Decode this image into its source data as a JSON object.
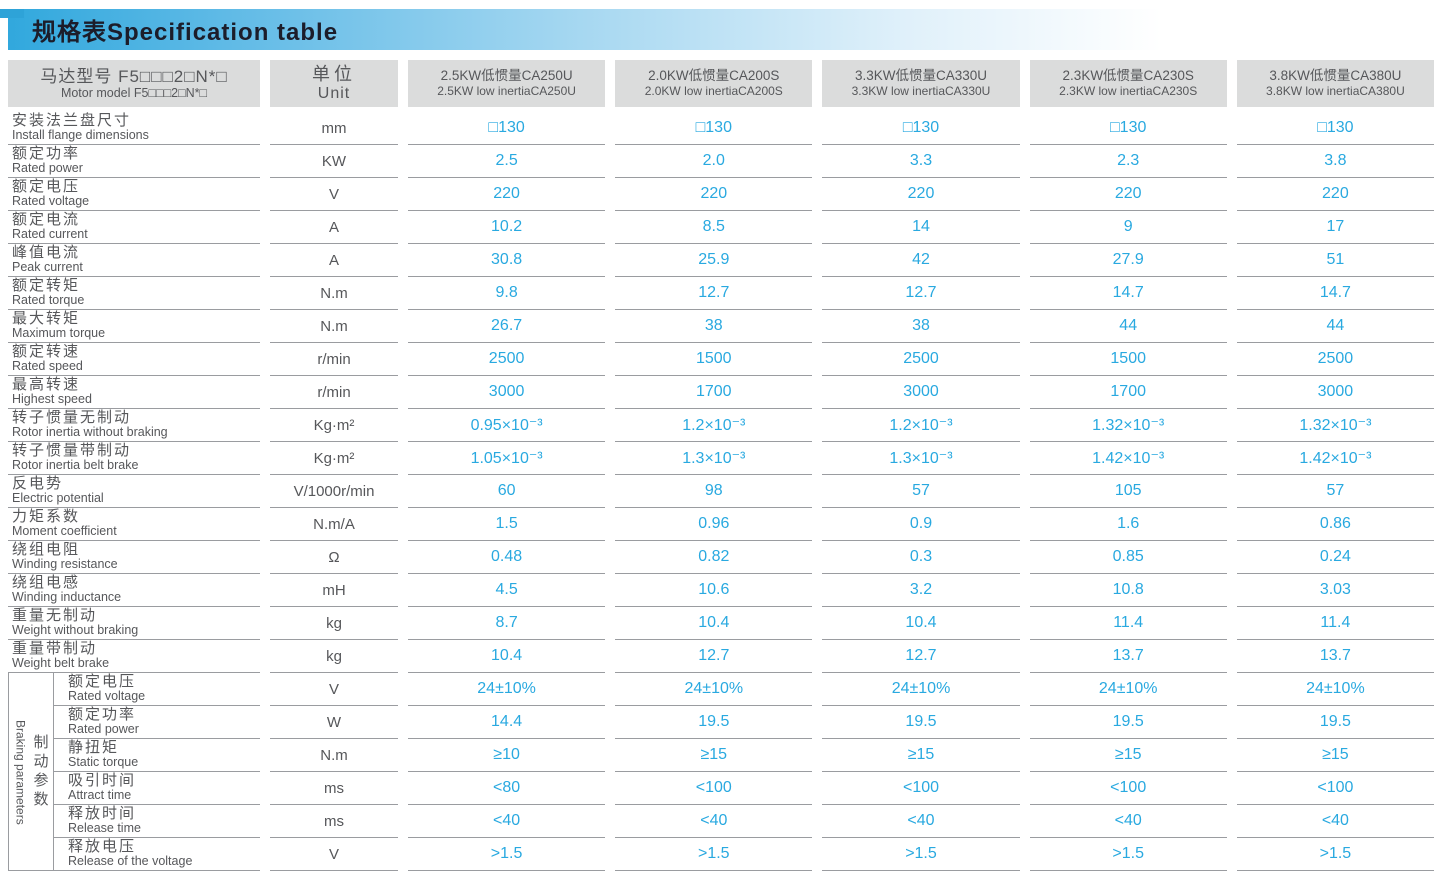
{
  "title": "规格表Specification table",
  "colors": {
    "accent_blue": "#29a9e0",
    "header_gray": "#dbdcdc",
    "label_gray": "#56575a",
    "border_gray": "#9a9ca0",
    "title_band_blue": "#31a8dd"
  },
  "table": {
    "model_header": {
      "zh": "马达型号 F5□□□2□N*□",
      "en": "Motor model F5□□□2□N*□"
    },
    "unit_header": {
      "zh": "单位",
      "en": "Unit"
    },
    "columns": [
      {
        "zh": "2.5KW低惯量CA250U",
        "en": "2.5KW low inertiaCA250U"
      },
      {
        "zh": "2.0KW低惯量CA200S",
        "en": "2.0KW low inertiaCA200S"
      },
      {
        "zh": "3.3KW低惯量CA330U",
        "en": "3.3KW low inertiaCA330U"
      },
      {
        "zh": "2.3KW低惯量CA230S",
        "en": "2.3KW low inertiaCA230S"
      },
      {
        "zh": "3.8KW低惯量CA380U",
        "en": "3.8KW low inertiaCA380U"
      }
    ],
    "rows": [
      {
        "zh": "安装法兰盘尺寸",
        "en": "Install flange dimensions",
        "unit": "mm",
        "values": [
          "□130",
          "□130",
          "□130",
          "□130",
          "□130"
        ]
      },
      {
        "zh": "额定功率",
        "en": "Rated power",
        "unit": "KW",
        "values": [
          "2.5",
          "2.0",
          "3.3",
          "2.3",
          "3.8"
        ]
      },
      {
        "zh": "额定电压",
        "en": "Rated voltage",
        "unit": "V",
        "values": [
          "220",
          "220",
          "220",
          "220",
          "220"
        ]
      },
      {
        "zh": "额定电流",
        "en": "Rated current",
        "unit": "A",
        "values": [
          "10.2",
          "8.5",
          "14",
          "9",
          "17"
        ]
      },
      {
        "zh": "峰值电流",
        "en": "Peak current",
        "unit": "A",
        "values": [
          "30.8",
          "25.9",
          "42",
          "27.9",
          "51"
        ]
      },
      {
        "zh": "额定转矩",
        "en": "Rated torque",
        "unit": "N.m",
        "values": [
          "9.8",
          "12.7",
          "12.7",
          "14.7",
          "14.7"
        ]
      },
      {
        "zh": "最大转矩",
        "en": "Maximum torque",
        "unit": "N.m",
        "values": [
          "26.7",
          "38",
          "38",
          "44",
          "44"
        ]
      },
      {
        "zh": "额定转速",
        "en": "Rated speed",
        "unit": "r/min",
        "values": [
          "2500",
          "1500",
          "2500",
          "1500",
          "2500"
        ]
      },
      {
        "zh": "最高转速",
        "en": "Highest speed",
        "unit": "r/min",
        "values": [
          "3000",
          "1700",
          "3000",
          "1700",
          "3000"
        ]
      },
      {
        "zh": "转子惯量无制动",
        "en": "Rotor inertia without braking",
        "unit": "Kg·m²",
        "values": [
          "0.95×10⁻³",
          "1.2×10⁻³",
          "1.2×10⁻³",
          "1.32×10⁻³",
          "1.32×10⁻³"
        ]
      },
      {
        "zh": "转子惯量带制动",
        "en": "Rotor inertia belt brake",
        "unit": "Kg·m²",
        "values": [
          "1.05×10⁻³",
          "1.3×10⁻³",
          "1.3×10⁻³",
          "1.42×10⁻³",
          "1.42×10⁻³"
        ]
      },
      {
        "zh": "反电势",
        "en": "Electric potential",
        "unit": "V/1000r/min",
        "values": [
          "60",
          "98",
          "57",
          "105",
          "57"
        ]
      },
      {
        "zh": "力矩系数",
        "en": "Moment coefficient",
        "unit": "N.m/A",
        "values": [
          "1.5",
          "0.96",
          "0.9",
          "1.6",
          "0.86"
        ]
      },
      {
        "zh": "绕组电阻",
        "en": "Winding resistance",
        "unit": "Ω",
        "values": [
          "0.48",
          "0.82",
          "0.3",
          "0.85",
          "0.24"
        ]
      },
      {
        "zh": "绕组电感",
        "en": "Winding inductance",
        "unit": "mH",
        "values": [
          "4.5",
          "10.6",
          "3.2",
          "10.8",
          "3.03"
        ]
      },
      {
        "zh": "重量无制动",
        "en": "Weight without braking",
        "unit": "kg",
        "values": [
          "8.7",
          "10.4",
          "10.4",
          "11.4",
          "11.4"
        ]
      },
      {
        "zh": "重量带制动",
        "en": "Weight belt brake",
        "unit": "kg",
        "values": [
          "10.4",
          "12.7",
          "12.7",
          "13.7",
          "13.7"
        ]
      }
    ],
    "braking": {
      "label_zh": "制动参数",
      "label_en": "Braking parameters",
      "rows": [
        {
          "zh": "额定电压",
          "en": "Rated voltage",
          "unit": "V",
          "values": [
            "24±10%",
            "24±10%",
            "24±10%",
            "24±10%",
            "24±10%"
          ]
        },
        {
          "zh": "额定功率",
          "en": "Rated power",
          "unit": "W",
          "values": [
            "14.4",
            "19.5",
            "19.5",
            "19.5",
            "19.5"
          ]
        },
        {
          "zh": "静扭矩",
          "en": "Static torque",
          "unit": "N.m",
          "values": [
            "≥10",
            "≥15",
            "≥15",
            "≥15",
            "≥15"
          ]
        },
        {
          "zh": "吸引时间",
          "en": "Attract time",
          "unit": "ms",
          "values": [
            "<80",
            "<100",
            "<100",
            "<100",
            "<100"
          ]
        },
        {
          "zh": "释放时间",
          "en": "Release time",
          "unit": "ms",
          "values": [
            "<40",
            "<40",
            "<40",
            "<40",
            "<40"
          ]
        },
        {
          "zh": "释放电压",
          "en": "Release of the voltage",
          "unit": "V",
          "values": [
            ">1.5",
            ">1.5",
            ">1.5",
            ">1.5",
            ">1.5"
          ]
        }
      ]
    }
  }
}
